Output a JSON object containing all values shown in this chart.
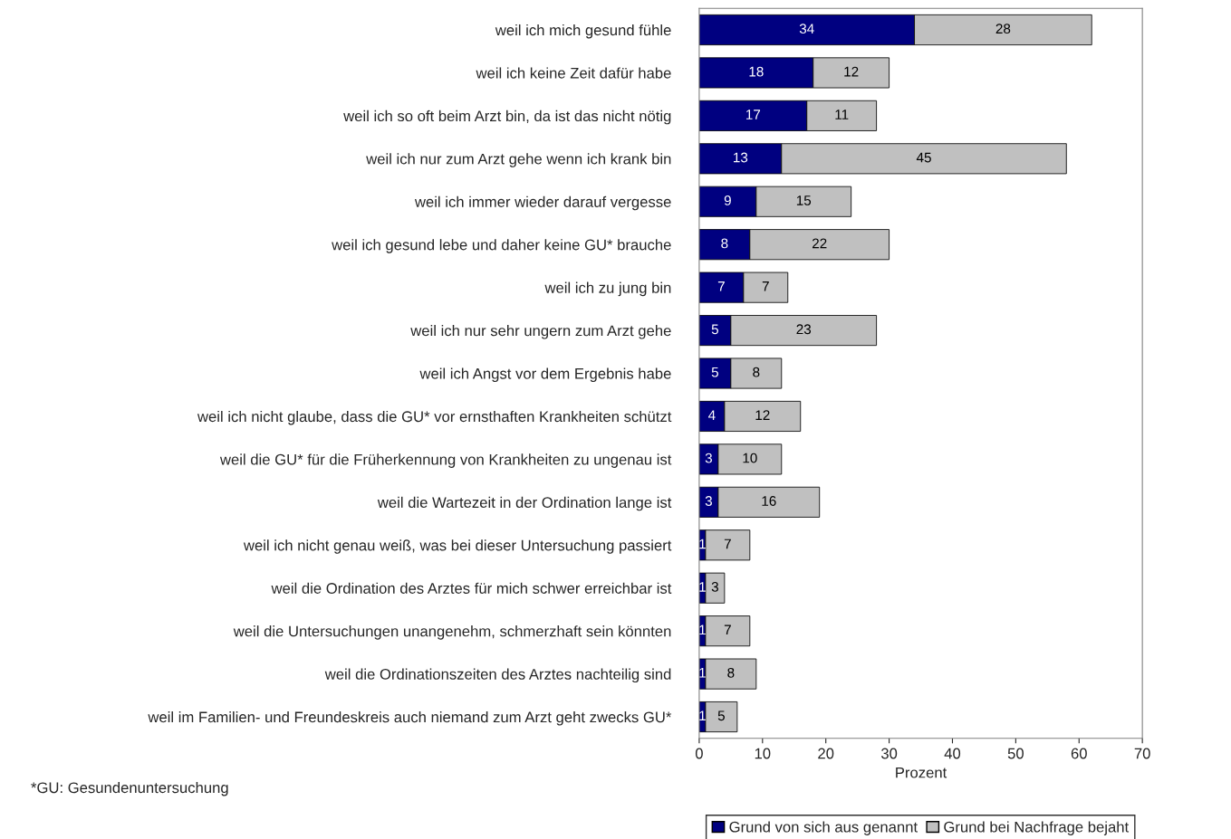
{
  "chart_data": {
    "type": "bar",
    "orientation": "horizontal",
    "stacked": true,
    "categories": [
      "weil ich mich gesund fühle",
      "weil ich keine Zeit dafür habe",
      "weil ich so oft beim Arzt bin, da ist das nicht nötig",
      "weil ich nur zum Arzt gehe wenn ich krank bin",
      "weil ich immer wieder darauf vergesse",
      "weil ich gesund lebe und daher keine GU* brauche",
      "weil ich zu jung bin",
      "weil ich nur sehr ungern zum Arzt gehe",
      "weil ich Angst vor dem Ergebnis habe",
      "weil ich nicht glaube, dass die GU* vor ernsthaften Krankheiten schützt",
      "weil die GU* für die Früherkennung von Krankheiten zu ungenau ist",
      "weil die Wartezeit in der Ordination lange ist",
      "weil ich nicht genau weiß, was bei dieser Untersuchung passiert",
      "weil die Ordination des Arztes für mich schwer erreichbar ist",
      "weil die Untersuchungen unangenehm, schmerzhaft sein könnten",
      "weil die Ordinationszeiten des Arztes nachteilig sind",
      "weil im Familien- und Freundeskreis auch niemand zum Arzt geht zwecks GU*"
    ],
    "series": [
      {
        "name": "Grund von sich aus genannt",
        "color": "#000080",
        "values": [
          34,
          18,
          17,
          13,
          9,
          8,
          7,
          5,
          5,
          4,
          3,
          3,
          1,
          1,
          1,
          1,
          1
        ]
      },
      {
        "name": "Grund bei Nachfrage bejaht",
        "color": "#c0c0c0",
        "values": [
          28,
          12,
          11,
          45,
          15,
          22,
          7,
          23,
          8,
          12,
          10,
          16,
          7,
          3,
          7,
          8,
          5
        ]
      }
    ],
    "xlim": [
      0,
      70
    ],
    "xticks": [
      0,
      10,
      20,
      30,
      40,
      50,
      60,
      70
    ],
    "xlabel": "Prozent",
    "data_labels": true,
    "legend": "bottom right",
    "grid": false,
    "annotations": [
      "*GU: Gesundenuntersuchung"
    ]
  }
}
